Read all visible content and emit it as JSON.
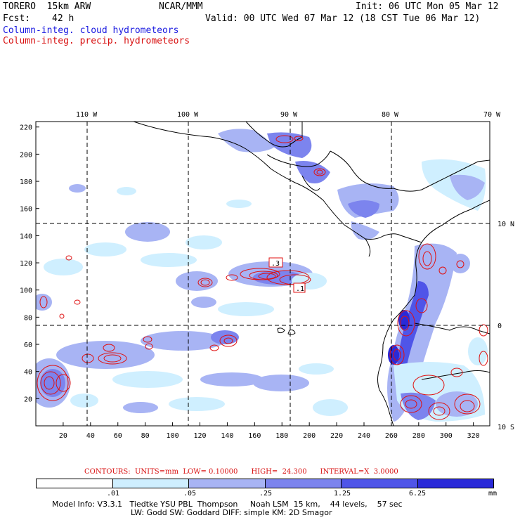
{
  "header": {
    "model": "TORERO  15km ARW",
    "org": "NCAR/MMM",
    "init": "Init: 06 UTC Mon 05 Mar 12",
    "fcst_label": "Fcst:",
    "fcst_value": "42 h",
    "valid": "Valid: 00 UTC Wed 07 Mar 12 (18 CST Tue 06 Mar 12)",
    "field1": "Column-integ. cloud hydrometeors",
    "field2": "Column-integ. precip. hydrometeors"
  },
  "map": {
    "top_lon_labels": [
      "110 W",
      "100 W",
      "90 W",
      "80 W",
      "70 W"
    ],
    "right_lat_labels": [
      "10 N",
      "0",
      "10 S"
    ],
    "x_ticks": [
      "20",
      "40",
      "60",
      "80",
      "100",
      "120",
      "140",
      "160",
      "180",
      "200",
      "220",
      "240",
      "260",
      "280",
      "300",
      "320"
    ],
    "y_ticks": [
      "20",
      "40",
      "60",
      "80",
      "100",
      "120",
      "140",
      "160",
      "180",
      "200",
      "220"
    ],
    "grid_x_range": [
      0,
      332
    ],
    "grid_y_range": [
      0,
      224
    ],
    "contour_labels": [
      ".3",
      ".1"
    ],
    "colors": {
      "level1": "#cfefff",
      "level2": "#a8b4f4",
      "level3": "#7c84ee",
      "level4": "#4f55e8",
      "level5": "#2a2ad8",
      "contour": "#e01010",
      "coast": "#000000"
    }
  },
  "contours": {
    "text": "CONTOURS:  UNITS=mm  LOW= 0.10000      HIGH=  24.300      INTERVAL=X  3.0000"
  },
  "colorbar": {
    "labels": [
      ".01",
      ".05",
      ".25",
      "1.25",
      "6.25"
    ],
    "unit": "mm",
    "colors": [
      "#ffffff",
      "#cfefff",
      "#a8b4f4",
      "#7c84ee",
      "#4f55e8",
      "#2a2ad8"
    ]
  },
  "footer": {
    "line1": "Model Info: V3.3.1   Tiedtke YSU PBL  Thompson     Noah LSM  15 km,    44 levels,    57 sec",
    "line2": "LW: Godd SW: Goddard DIFF: simple KM: 2D Smagor"
  }
}
